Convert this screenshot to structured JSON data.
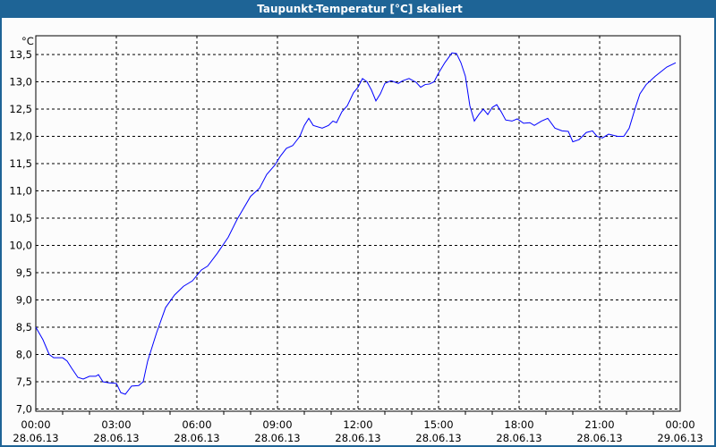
{
  "title": "Taupunkt-Temperatur [°C] skaliert",
  "colors": {
    "titlebar": "#1e6496",
    "line": "#0000ff",
    "grid": "#000000"
  },
  "chart_data": {
    "type": "line",
    "title": "Taupunkt-Temperatur [°C] skaliert",
    "ylabel": "°C",
    "ylim": [
      7.0,
      13.5
    ],
    "xlim": [
      "28.06.13 00:00",
      "29.06.13 00:00"
    ],
    "grid": true,
    "y_ticks": [
      "7,0",
      "7,5",
      "8,0",
      "8,5",
      "9,0",
      "9,5",
      "10,0",
      "10,5",
      "11,0",
      "11,5",
      "12,0",
      "12,5",
      "13,0",
      "13,5"
    ],
    "x_ticks": [
      {
        "time": "00:00",
        "date": "28.06.13"
      },
      {
        "time": "03:00",
        "date": "28.06.13"
      },
      {
        "time": "06:00",
        "date": "28.06.13"
      },
      {
        "time": "09:00",
        "date": "28.06.13"
      },
      {
        "time": "12:00",
        "date": "28.06.13"
      },
      {
        "time": "15:00",
        "date": "28.06.13"
      },
      {
        "time": "18:00",
        "date": "28.06.13"
      },
      {
        "time": "21:00",
        "date": "28.06.13"
      },
      {
        "time": "00:00",
        "date": "29.06.13"
      }
    ],
    "series": [
      {
        "x": [
          "00:00",
          "00:16",
          "00:30",
          "00:40",
          "01:00",
          "01:10",
          "01:20",
          "01:34",
          "01:46",
          "02:00",
          "02:14",
          "02:20",
          "02:30",
          "02:44",
          "03:00",
          "03:10",
          "03:20",
          "03:34",
          "03:50",
          "04:00",
          "04:10",
          "04:30",
          "04:50",
          "05:10",
          "05:30",
          "05:50",
          "06:10",
          "06:24",
          "06:46",
          "07:10",
          "07:30",
          "08:00",
          "08:20",
          "08:36",
          "08:54",
          "09:06",
          "09:20",
          "09:34",
          "09:50",
          "10:00",
          "10:10",
          "10:20",
          "10:40",
          "10:54",
          "11:04",
          "11:12",
          "11:24",
          "11:36",
          "11:50",
          "12:00",
          "12:10",
          "12:20",
          "12:30",
          "12:40",
          "12:50",
          "13:00",
          "13:14",
          "13:30",
          "13:40",
          "13:54",
          "14:10",
          "14:20",
          "14:30",
          "14:40",
          "14:50",
          "15:00",
          "15:14",
          "15:30",
          "15:40",
          "15:50",
          "16:00",
          "16:10",
          "16:20",
          "16:30",
          "16:40",
          "16:50",
          "17:00",
          "17:10",
          "17:20",
          "17:30",
          "17:44",
          "17:56",
          "18:10",
          "18:24",
          "18:34",
          "18:50",
          "19:04",
          "19:20",
          "19:36",
          "19:50",
          "20:00",
          "20:14",
          "20:30",
          "20:44",
          "20:54",
          "21:06",
          "21:20",
          "21:40",
          "21:54",
          "22:06",
          "22:20",
          "22:30",
          "22:44",
          "23:04",
          "23:30",
          "23:50"
        ],
        "y": [
          8.5,
          8.27,
          8.0,
          7.94,
          7.94,
          7.88,
          7.75,
          7.58,
          7.55,
          7.6,
          7.6,
          7.63,
          7.5,
          7.48,
          7.47,
          7.3,
          7.27,
          7.42,
          7.43,
          7.5,
          7.88,
          8.4,
          8.86,
          9.09,
          9.25,
          9.35,
          9.55,
          9.62,
          9.86,
          10.15,
          10.48,
          10.9,
          11.05,
          11.3,
          11.47,
          11.63,
          11.78,
          11.83,
          12.0,
          12.2,
          12.33,
          12.2,
          12.15,
          12.2,
          12.28,
          12.25,
          12.45,
          12.56,
          12.8,
          12.9,
          13.06,
          13.0,
          12.85,
          12.65,
          12.78,
          12.97,
          13.02,
          12.97,
          13.02,
          13.06,
          12.99,
          12.9,
          12.95,
          12.96,
          13.0,
          13.16,
          13.35,
          13.53,
          13.52,
          13.35,
          13.1,
          12.56,
          12.28,
          12.4,
          12.5,
          12.4,
          12.53,
          12.58,
          12.45,
          12.3,
          12.28,
          12.32,
          12.24,
          12.25,
          12.2,
          12.28,
          12.33,
          12.15,
          12.1,
          12.09,
          11.9,
          11.94,
          12.07,
          12.1,
          12.0,
          11.97,
          12.04,
          12.0,
          12.0,
          12.15,
          12.53,
          12.78,
          12.95,
          13.1,
          13.27,
          13.35
        ]
      }
    ]
  }
}
